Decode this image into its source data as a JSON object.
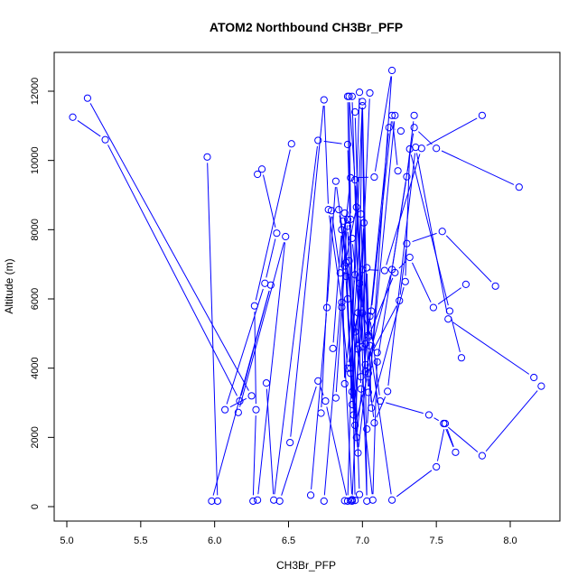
{
  "chart_data": {
    "type": "line",
    "title": "ATOM2 Northbound CH3Br_PFP",
    "xlabel": "CH3Br_PFP",
    "ylabel": "Altitude (m)",
    "xlim": [
      5.0,
      8.2
    ],
    "ylim": [
      0,
      12600
    ],
    "xticks": [
      "5.0",
      "5.5",
      "6.0",
      "6.5",
      "7.0",
      "7.5",
      "8.0"
    ],
    "yticks": [
      "0",
      "2000",
      "4000",
      "6000",
      "8000",
      "10000",
      "12000"
    ],
    "series_color": "#0000ff",
    "markers": "open-circle",
    "grid": false,
    "series": [
      {
        "x": [
          5.04,
          5.26,
          6.17,
          6.38,
          5.98,
          6.02,
          5.95
        ],
        "y": [
          11250,
          10600,
          3050,
          6400,
          160,
          160,
          10100
        ]
      },
      {
        "x": [
          5.14,
          6.25,
          6.07,
          6.34,
          6.42,
          6.32,
          6.29
        ],
        "y": [
          11800,
          3200,
          2800,
          6450,
          7900,
          9750,
          9600
        ]
      },
      {
        "x": [
          6.52,
          6.27,
          6.28,
          6.26,
          6.29,
          6.48,
          6.16
        ],
        "y": [
          10480,
          5800,
          2800,
          160,
          190,
          7800,
          2720
        ]
      },
      {
        "x": [
          6.35,
          6.4,
          6.7,
          6.9,
          6.98,
          6.88,
          6.92
        ],
        "y": [
          3570,
          190,
          10580,
          10460,
          350,
          170,
          170
        ]
      },
      {
        "x": [
          6.51,
          6.74,
          6.77,
          6.86,
          6.93,
          6.95,
          6.9
        ],
        "y": [
          1850,
          11750,
          8580,
          5900,
          200,
          180,
          11850
        ]
      },
      {
        "x": [
          6.44,
          6.7,
          6.75,
          6.9,
          6.98,
          7.05,
          6.93
        ],
        "y": [
          160,
          3630,
          3050,
          160,
          11970,
          11950,
          160
        ]
      },
      {
        "x": [
          6.65,
          6.76,
          6.82,
          6.97,
          7.0,
          7.03,
          6.95
        ],
        "y": [
          330,
          5750,
          9400,
          4550,
          11580,
          160,
          11400
        ]
      },
      {
        "x": [
          6.72,
          6.79,
          6.85,
          6.92,
          7.08,
          7.2,
          7.03
        ],
        "y": [
          2700,
          8550,
          6750,
          9500,
          9520,
          12600,
          2240
        ]
      },
      {
        "x": [
          6.74,
          6.9,
          6.93,
          7.0,
          7.04,
          7.18,
          7.26
        ],
        "y": [
          160,
          8300,
          7750,
          4620,
          4950,
          10950,
          10850
        ]
      },
      {
        "x": [
          6.8,
          6.86,
          6.88,
          6.95,
          7.0,
          7.04,
          7.22
        ],
        "y": [
          4570,
          8000,
          3550,
          6700,
          11700,
          3300,
          11300
        ]
      },
      {
        "x": [
          6.82,
          6.88,
          6.96,
          7.02,
          7.06,
          7.2,
          7.24
        ],
        "y": [
          3140,
          6950,
          8650,
          4700,
          5650,
          11300,
          9700
        ]
      },
      {
        "x": [
          6.84,
          6.89,
          6.95,
          6.99,
          7.1,
          7.3,
          7.35
        ],
        "y": [
          8580,
          7050,
          5050,
          3750,
          4180,
          9530,
          11300
        ]
      },
      {
        "x": [
          6.86,
          6.9,
          6.97,
          7.0,
          7.15,
          7.4,
          7.81
        ],
        "y": [
          5760,
          4000,
          5600,
          6850,
          6820,
          10350,
          11300
        ]
      },
      {
        "x": [
          6.87,
          6.93,
          6.98,
          7.02,
          7.2,
          7.35,
          7.5,
          8.06
        ],
        "y": [
          8250,
          2950,
          6450,
          3900,
          6850,
          10950,
          10350,
          9230
        ]
      },
      {
        "x": [
          6.88,
          6.92,
          6.99,
          7.02,
          7.25,
          7.3,
          7.54,
          7.9
        ],
        "y": [
          8480,
          3850,
          8450,
          4100,
          5950,
          7600,
          7950,
          6370
        ]
      },
      {
        "x": [
          6.89,
          6.93,
          7.01,
          7.04,
          7.22,
          7.32,
          7.48,
          7.7
        ],
        "y": [
          6650,
          3320,
          8200,
          4900,
          6760,
          7200,
          5750,
          6420
        ]
      },
      {
        "x": [
          6.9,
          6.94,
          7.03,
          7.06,
          7.29,
          7.32,
          7.59,
          7.67
        ],
        "y": [
          6000,
          2650,
          6900,
          2850,
          6500,
          10330,
          5650,
          4300
        ]
      },
      {
        "x": [
          6.9,
          6.95,
          7.04,
          7.08,
          7.17,
          7.36,
          7.58,
          8.16
        ],
        "y": [
          8100,
          2350,
          3850,
          2420,
          3330,
          10380,
          5420,
          3730
        ]
      },
      {
        "x": [
          6.91,
          6.96,
          7.05,
          7.12,
          7.45,
          7.55,
          7.81,
          8.21
        ],
        "y": [
          7100,
          2000,
          5500,
          3050,
          2650,
          2400,
          1470,
          3480
        ]
      },
      {
        "x": [
          6.92,
          6.97,
          7.05,
          7.2,
          7.5,
          7.56,
          7.63,
          7.55
        ],
        "y": [
          4000,
          1550,
          4650,
          190,
          1150,
          2400,
          1570,
          2400
        ]
      },
      {
        "x": [
          6.93,
          6.99,
          7.07,
          7.1,
          7.0,
          6.95,
          6.91,
          6.92
        ],
        "y": [
          11850,
          3400,
          190,
          4450,
          5590,
          9440,
          11850,
          8300
        ]
      }
    ]
  }
}
